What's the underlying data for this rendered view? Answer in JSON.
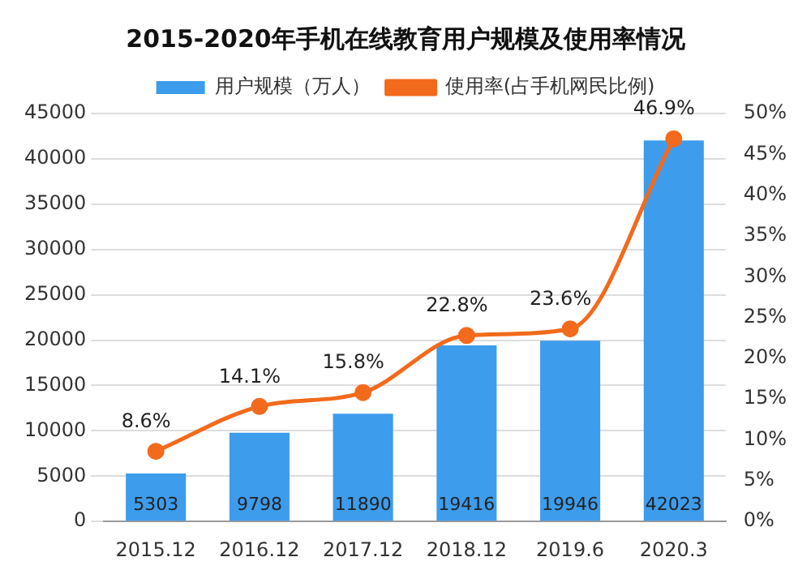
{
  "chart_data": {
    "type": "bar",
    "title": "2015-2020年手机在线教育用户规模及使用率情况",
    "categories": [
      "2015.12",
      "2016.12",
      "2017.12",
      "2018.12",
      "2019.6",
      "2020.3"
    ],
    "series": [
      {
        "name": "用户规模（万人）",
        "color": "#3d9cec",
        "values": [
          5303,
          9798,
          11890,
          19416,
          19946,
          42023
        ],
        "value_labels": [
          "5303",
          "9798",
          "11890",
          "19416",
          "19946",
          "42023"
        ]
      },
      {
        "name": "使用率(占手机网民比例)",
        "type": "line",
        "axis": "y2",
        "color": "#f26a1b",
        "marker": "circle",
        "values": [
          8.6,
          14.1,
          15.8,
          22.8,
          23.6,
          46.9
        ],
        "value_labels": [
          "8.6%",
          "14.1%",
          "15.8%",
          "22.8%",
          "23.6%",
          "46.9%"
        ]
      }
    ],
    "ylim": [
      0,
      45000
    ],
    "yticks": [
      0,
      5000,
      10000,
      15000,
      20000,
      25000,
      30000,
      35000,
      40000,
      45000
    ],
    "y2lim": [
      0,
      50
    ],
    "y2ticks": [
      {
        "value": 0,
        "label": "0%"
      },
      {
        "value": 5,
        "label": "5%"
      },
      {
        "value": 10,
        "label": "10%"
      },
      {
        "value": 15,
        "label": "15%"
      },
      {
        "value": 20,
        "label": "20%"
      },
      {
        "value": 25,
        "label": "25%"
      },
      {
        "value": 30,
        "label": "30%"
      },
      {
        "value": 35,
        "label": "35%"
      },
      {
        "value": 40,
        "label": "40%"
      },
      {
        "value": 45,
        "label": "45%"
      },
      {
        "value": 50,
        "label": "50%"
      }
    ],
    "grid": "y",
    "legend": "top"
  }
}
